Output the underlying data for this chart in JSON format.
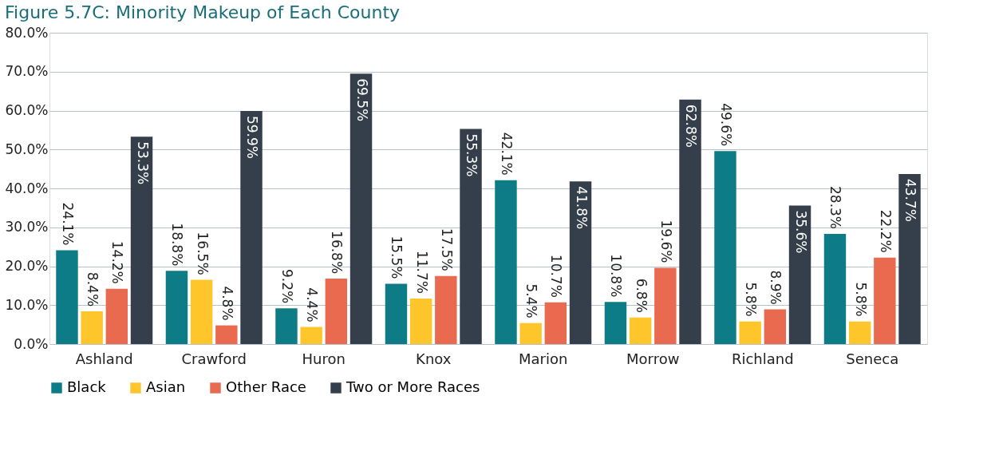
{
  "chart_data": {
    "type": "bar",
    "title": "Figure 5.7C: Minority Makeup of Each County",
    "categories": [
      "Ashland",
      "Crawford",
      "Huron",
      "Knox",
      "Marion",
      "Morrow",
      "Richland",
      "Seneca"
    ],
    "series": [
      {
        "name": "Black",
        "color": "#0e7c86",
        "values": [
          24.1,
          18.8,
          9.2,
          15.5,
          42.1,
          10.8,
          49.6,
          28.3
        ],
        "value_labels": [
          "24.1%",
          "18.8%",
          "9.2%",
          "15.5%",
          "42.1%",
          "10.8%",
          "49.6%",
          "28.3%"
        ]
      },
      {
        "name": "Asian",
        "color": "#ffc62b",
        "values": [
          8.4,
          16.5,
          4.4,
          11.7,
          5.4,
          6.8,
          5.8,
          5.8
        ],
        "value_labels": [
          "8.4%",
          "16.5%",
          "4.4%",
          "11.7%",
          "5.4%",
          "6.8%",
          "5.8%",
          "5.8%"
        ]
      },
      {
        "name": "Other Race",
        "color": "#ea6a50",
        "values": [
          14.2,
          4.8,
          16.8,
          17.5,
          10.7,
          19.6,
          8.9,
          22.2
        ],
        "value_labels": [
          "14.2%",
          "4.8%",
          "16.8%",
          "17.5%",
          "10.7%",
          "19.6%",
          "8.9%",
          "22.2%"
        ]
      },
      {
        "name": "Two or More Races",
        "color": "#343f4b",
        "values": [
          53.3,
          59.9,
          69.5,
          55.3,
          41.8,
          62.8,
          35.6,
          43.7
        ],
        "value_labels": [
          "53.3%",
          "59.9%",
          "69.5%",
          "55.3%",
          "41.8%",
          "62.8%",
          "35.6%",
          "43.7%"
        ]
      }
    ],
    "ylim": [
      0,
      80
    ],
    "yticks": [
      {
        "value": 0,
        "label": "0.0%"
      },
      {
        "value": 10,
        "label": "10.0%"
      },
      {
        "value": 20,
        "label": "20.0%"
      },
      {
        "value": 30,
        "label": "30.0%"
      },
      {
        "value": 40,
        "label": "40.0%"
      },
      {
        "value": 50,
        "label": "50.0%"
      },
      {
        "value": 60,
        "label": "60.0%"
      },
      {
        "value": 70,
        "label": "70.0%"
      },
      {
        "value": 80,
        "label": "80.0%"
      }
    ],
    "grid": "y",
    "legend": "bottom"
  }
}
